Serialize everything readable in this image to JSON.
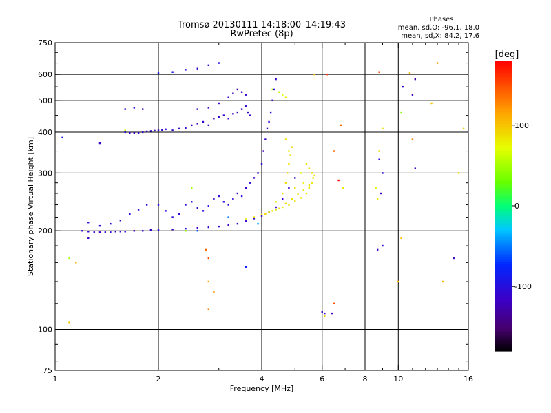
{
  "chart_data": {
    "type": "scatter",
    "title": "Tromsø 20130111 14:18:00–14:19:43",
    "subtitle": "RwPretec (8p)",
    "phases": {
      "heading": "Phases",
      "line_o": "mean, sd,O: -96.1, 18.0",
      "line_x": "mean, sd,X:  84.2, 17.6"
    },
    "xlabel": "Frequency [MHz]",
    "ylabel": "Stationary phase Virtual Height [km]",
    "x_scale": "log",
    "y_scale": "log",
    "xlim": [
      1,
      16
    ],
    "ylim": [
      75,
      750
    ],
    "x_ticks": [
      1,
      2,
      4,
      6,
      8,
      10,
      16
    ],
    "x_tick_labels": [
      "1",
      "2",
      "4",
      "6",
      "8",
      "10",
      "16"
    ],
    "y_ticks": [
      75,
      100,
      200,
      300,
      400,
      500,
      600,
      750
    ],
    "y_tick_labels": [
      "75",
      "100",
      "200",
      "300",
      "400",
      "500",
      "600",
      "750"
    ],
    "grid": true,
    "colorbar": {
      "label": "[deg]",
      "range": [
        -180,
        180
      ],
      "ticks": [
        -100,
        0,
        100
      ],
      "tick_labels": [
        "-100",
        "0",
        "100"
      ]
    },
    "series": [
      {
        "points": [
          [
            1.2,
            200
          ],
          [
            1.25,
            199
          ],
          [
            1.3,
            198
          ],
          [
            1.35,
            198
          ],
          [
            1.4,
            198
          ],
          [
            1.45,
            198
          ],
          [
            1.5,
            199
          ],
          [
            1.55,
            199
          ],
          [
            1.6,
            199
          ],
          [
            1.7,
            200
          ],
          [
            1.8,
            200
          ],
          [
            1.9,
            201
          ],
          [
            2.0,
            201
          ],
          [
            2.2,
            202
          ],
          [
            2.4,
            203
          ],
          [
            2.6,
            204
          ],
          [
            2.8,
            205
          ],
          [
            3.0,
            206
          ],
          [
            3.2,
            208
          ],
          [
            3.4,
            210
          ],
          [
            3.6,
            214
          ],
          [
            3.8,
            218
          ],
          [
            4.0,
            222
          ],
          [
            4.2,
            228
          ],
          [
            4.4,
            236
          ],
          [
            4.6,
            250
          ],
          [
            4.8,
            270
          ],
          [
            5.0,
            290
          ],
          [
            1.25,
            212
          ],
          [
            1.35,
            207
          ],
          [
            1.45,
            210
          ],
          [
            1.55,
            215
          ],
          [
            1.65,
            225
          ],
          [
            1.75,
            232
          ],
          [
            1.85,
            240
          ],
          [
            2.0,
            240
          ],
          [
            2.1,
            230
          ],
          [
            2.2,
            220
          ],
          [
            2.3,
            225
          ],
          [
            2.4,
            240
          ],
          [
            2.5,
            245
          ],
          [
            2.6,
            235
          ],
          [
            2.7,
            230
          ],
          [
            2.8,
            238
          ],
          [
            2.9,
            250
          ],
          [
            3.0,
            255
          ],
          [
            3.1,
            245
          ],
          [
            3.2,
            240
          ],
          [
            3.3,
            250
          ],
          [
            3.4,
            260
          ],
          [
            3.5,
            255
          ],
          [
            3.6,
            270
          ],
          [
            3.7,
            280
          ],
          [
            3.8,
            290
          ],
          [
            3.9,
            300
          ],
          [
            4.0,
            320
          ],
          [
            4.05,
            350
          ],
          [
            4.1,
            380
          ],
          [
            4.15,
            410
          ],
          [
            4.2,
            430
          ],
          [
            4.25,
            460
          ],
          [
            4.3,
            500
          ],
          [
            4.35,
            540
          ],
          [
            4.4,
            580
          ],
          [
            1.6,
            400
          ],
          [
            1.65,
            398
          ],
          [
            1.7,
            397
          ],
          [
            1.75,
            398
          ],
          [
            1.8,
            400
          ],
          [
            1.85,
            402
          ],
          [
            1.9,
            403
          ],
          [
            1.95,
            404
          ],
          [
            2.0,
            405
          ],
          [
            2.05,
            406
          ],
          [
            2.1,
            408
          ],
          [
            2.2,
            405
          ],
          [
            2.3,
            410
          ],
          [
            2.4,
            412
          ],
          [
            2.5,
            420
          ],
          [
            2.6,
            425
          ],
          [
            2.7,
            430
          ],
          [
            2.8,
            420
          ],
          [
            2.9,
            440
          ],
          [
            3.0,
            445
          ],
          [
            3.1,
            450
          ],
          [
            3.2,
            440
          ],
          [
            3.3,
            455
          ],
          [
            3.4,
            460
          ],
          [
            3.5,
            470
          ],
          [
            3.6,
            480
          ],
          [
            3.65,
            460
          ],
          [
            3.7,
            450
          ],
          [
            2.6,
            470
          ],
          [
            2.8,
            475
          ],
          [
            3.0,
            490
          ],
          [
            3.2,
            510
          ],
          [
            3.3,
            525
          ],
          [
            3.4,
            540
          ],
          [
            3.5,
            530
          ],
          [
            3.6,
            520
          ],
          [
            1.6,
            470
          ],
          [
            1.7,
            475
          ],
          [
            1.8,
            470
          ],
          [
            2.0,
            605
          ],
          [
            2.2,
            610
          ],
          [
            2.4,
            620
          ],
          [
            2.6,
            625
          ],
          [
            2.8,
            640
          ],
          [
            3.0,
            650
          ],
          [
            1.05,
            385
          ],
          [
            1.35,
            370
          ],
          [
            1.25,
            190
          ],
          [
            2.6,
            200
          ],
          [
            3.2,
            220
          ],
          [
            3.9,
            210
          ],
          [
            1.1,
            165
          ],
          [
            3.6,
            155
          ],
          [
            9.0,
            180
          ],
          [
            8.7,
            175
          ],
          [
            6.5,
            120
          ],
          [
            6.4,
            112
          ],
          [
            6.0,
            113
          ],
          [
            6.1,
            112
          ],
          [
            10.2,
            460
          ],
          [
            10.3,
            550
          ],
          [
            11.0,
            520
          ],
          [
            11.2,
            580
          ],
          [
            8.8,
            350
          ],
          [
            8.8,
            330
          ],
          [
            9.0,
            300
          ],
          [
            8.9,
            260
          ],
          [
            14.5,
            165
          ],
          [
            11.0,
            380
          ],
          [
            11.2,
            310
          ],
          [
            6.5,
            350
          ],
          [
            6.7,
            285
          ]
        ],
        "phase": [
          -110,
          -112,
          -115,
          -118,
          -110,
          -108,
          -112,
          -114,
          -110,
          -116,
          -112,
          -110,
          -108,
          -112,
          -110,
          -115,
          -110,
          -112,
          -115,
          -110,
          -112,
          -108,
          -110,
          -112,
          -115,
          -110,
          -112,
          -110,
          -100,
          -105,
          -95,
          -110,
          -100,
          -105,
          -110,
          -100,
          -98,
          -105,
          -110,
          -102,
          -108,
          -112,
          -100,
          -95,
          -110,
          -105,
          -100,
          -110,
          -108,
          -112,
          -100,
          -110,
          -105,
          -115,
          -112,
          -110,
          -118,
          -115,
          -112,
          -110,
          -108,
          -115,
          -112,
          -110,
          -110,
          -112,
          -115,
          -110,
          -108,
          -112,
          -110,
          -114,
          -110,
          -112,
          -110,
          -108,
          -112,
          -110,
          -115,
          -112,
          -110,
          -108,
          -115,
          -112,
          -110,
          -112,
          -115,
          -110,
          -118,
          -112,
          -110,
          -108,
          -120,
          -118,
          -115,
          -112,
          -120,
          -118,
          -115,
          -110,
          -110,
          -105,
          -120,
          -95,
          -90,
          -100,
          -110,
          -105,
          -98,
          -90,
          -110,
          -115,
          -60,
          -50,
          -40,
          50,
          -80,
          -100,
          -115,
          150,
          -120,
          -115,
          -110,
          40,
          -110,
          -115,
          -130,
          90,
          -100,
          -110,
          -120,
          -120,
          130,
          -120,
          140
        ]
      },
      {
        "points": [
          [
            3.6,
            218
          ],
          [
            3.8,
            220
          ],
          [
            4.0,
            224
          ],
          [
            4.2,
            228
          ],
          [
            4.4,
            232
          ],
          [
            4.6,
            236
          ],
          [
            4.8,
            240
          ],
          [
            5.0,
            246
          ],
          [
            5.2,
            252
          ],
          [
            5.4,
            260
          ],
          [
            5.5,
            270
          ],
          [
            5.6,
            280
          ],
          [
            5.65,
            290
          ],
          [
            5.7,
            295
          ],
          [
            4.1,
            225
          ],
          [
            4.3,
            230
          ],
          [
            4.5,
            234
          ],
          [
            4.7,
            242
          ],
          [
            4.9,
            250
          ],
          [
            5.1,
            258
          ],
          [
            5.3,
            266
          ],
          [
            5.5,
            275
          ],
          [
            4.4,
            245
          ],
          [
            4.6,
            260
          ],
          [
            4.7,
            280
          ],
          [
            4.75,
            300
          ],
          [
            4.8,
            320
          ],
          [
            4.85,
            340
          ],
          [
            4.9,
            360
          ],
          [
            4.7,
            380
          ],
          [
            4.8,
            350
          ],
          [
            5.2,
            300
          ],
          [
            5.4,
            320
          ],
          [
            5.5,
            310
          ],
          [
            5.6,
            300
          ],
          [
            5.3,
            280
          ],
          [
            5.0,
            270
          ],
          [
            4.5,
            530
          ],
          [
            4.6,
            520
          ],
          [
            4.7,
            510
          ],
          [
            4.3,
            540
          ],
          [
            2.8,
            140
          ],
          [
            2.9,
            130
          ],
          [
            2.8,
            115
          ],
          [
            2.75,
            175
          ],
          [
            2.8,
            165
          ],
          [
            6.2,
            600
          ],
          [
            8.6,
            270
          ],
          [
            8.7,
            250
          ],
          [
            9.0,
            410
          ],
          [
            10.2,
            190
          ],
          [
            10.0,
            140
          ],
          [
            12.5,
            490
          ],
          [
            13.0,
            650
          ],
          [
            13.5,
            140
          ],
          [
            15.0,
            300
          ],
          [
            15.5,
            410
          ],
          [
            2.5,
            270
          ],
          [
            1.6,
            405
          ],
          [
            6.1,
            110
          ],
          [
            6.8,
            420
          ],
          [
            1.1,
            105
          ],
          [
            1.15,
            160
          ],
          [
            6.9,
            270
          ],
          [
            2.4,
            200
          ],
          [
            5.7,
            600
          ],
          [
            10.8,
            605
          ],
          [
            8.8,
            610
          ]
        ],
        "phase": [
          85,
          88,
          90,
          85,
          86,
          84,
          88,
          90,
          85,
          87,
          84,
          86,
          88,
          85,
          90,
          84,
          86,
          88,
          85,
          87,
          84,
          86,
          80,
          85,
          90,
          95,
          85,
          88,
          90,
          85,
          80,
          75,
          85,
          90,
          88,
          80,
          85,
          60,
          70,
          80,
          50,
          110,
          120,
          130,
          140,
          150,
          160,
          70,
          80,
          90,
          100,
          110,
          100,
          120,
          110,
          90,
          100,
          50,
          60,
          90,
          140,
          100,
          110,
          80,
          40,
          100,
          110,
          150
        ]
      }
    ]
  }
}
